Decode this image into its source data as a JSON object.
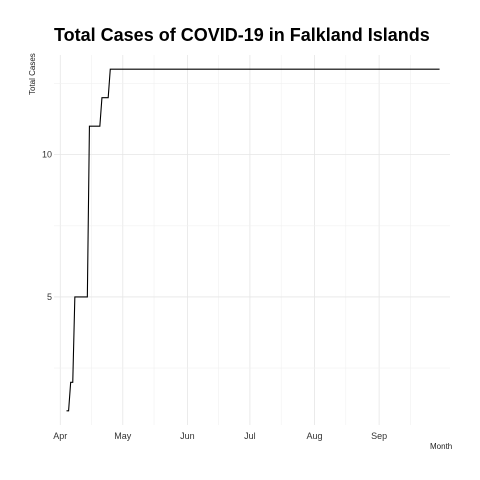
{
  "chart_data": {
    "type": "line",
    "title": "Total Cases of COVID-19 in Falkland Islands",
    "xlabel": "Month",
    "ylabel": "Total Cases",
    "x_ticks": [
      "Apr",
      "May",
      "Jun",
      "Jul",
      "Aug",
      "Sep"
    ],
    "y_ticks": [
      5,
      10
    ],
    "ylim": [
      0.5,
      13.5
    ],
    "grid": true,
    "series": [
      {
        "x": [
          "2020-04-04",
          "2020-04-05",
          "2020-04-06",
          "2020-04-07",
          "2020-04-08",
          "2020-04-14",
          "2020-04-15",
          "2020-04-20",
          "2020-04-21",
          "2020-04-24",
          "2020-04-25",
          "2020-09-30"
        ],
        "y": [
          1,
          1,
          2,
          2,
          5,
          5,
          11,
          11,
          12,
          12,
          13,
          13
        ]
      }
    ]
  }
}
